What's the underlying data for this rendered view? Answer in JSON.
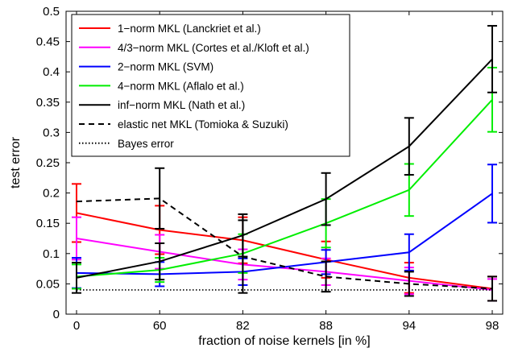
{
  "chart_data": {
    "type": "line",
    "xlabel": "fraction of noise kernels [in %]",
    "ylabel": "test error",
    "categories": [
      "0",
      "60",
      "82",
      "88",
      "94",
      "98"
    ],
    "ylim": [
      0,
      0.5
    ],
    "yticks": [
      0,
      0.05,
      0.1,
      0.15,
      0.2,
      0.25,
      0.3,
      0.35,
      0.4,
      0.45,
      0.5
    ],
    "ytick_labels": [
      "0",
      "0.05",
      "0.1",
      "0.15",
      "0.2",
      "0.25",
      "0.3",
      "0.35",
      "0.4",
      "0.45",
      "0.5"
    ],
    "grid": false,
    "legend_position": "top-left",
    "series": [
      {
        "name": "1−norm MKL (Lanckriet et al.)",
        "color": "#ff0000",
        "dash": "solid",
        "values": [
          0.167,
          0.139,
          0.122,
          0.09,
          0.06,
          0.042
        ],
        "errors": [
          0.048,
          0.04,
          0.038,
          0.03,
          0.025,
          0.02
        ]
      },
      {
        "name": "4/3−norm MKL (Cortes et al./Kloft et al.)",
        "color": "#ff00ff",
        "dash": "solid",
        "values": [
          0.125,
          0.103,
          0.082,
          0.07,
          0.055,
          0.04
        ],
        "errors": [
          0.035,
          0.028,
          0.025,
          0.022,
          0.022,
          0.018
        ]
      },
      {
        "name": "2−norm MKL (SVM)",
        "color": "#0000ff",
        "dash": "solid",
        "values": [
          0.068,
          0.066,
          0.07,
          0.086,
          0.102,
          0.199
        ],
        "errors": [
          0.025,
          0.02,
          0.022,
          0.02,
          0.03,
          0.048
        ]
      },
      {
        "name": "4−norm MKL (Aflalo et al.)",
        "color": "#00ee00",
        "dash": "solid",
        "values": [
          0.062,
          0.073,
          0.1,
          0.15,
          0.205,
          0.354
        ],
        "errors": [
          0.02,
          0.02,
          0.032,
          0.04,
          0.043,
          0.053
        ]
      },
      {
        "name": "inf−norm MKL (Nath et al.)",
        "color": "#000000",
        "dash": "solid",
        "values": [
          0.06,
          0.087,
          0.13,
          0.19,
          0.277,
          0.421
        ],
        "errors": [
          0.025,
          0.03,
          0.035,
          0.043,
          0.047,
          0.055
        ]
      },
      {
        "name": "elastic net MKL (Tomioka & Suzuki)",
        "color": "#000000",
        "dash": "dashed",
        "values": [
          0.186,
          0.191,
          0.095,
          0.062,
          0.05,
          0.042
        ],
        "errors": [
          0.0,
          0.05,
          0.06,
          0.025,
          0.02,
          0.02
        ]
      },
      {
        "name": "Bayes error",
        "color": "#000000",
        "dash": "dotted",
        "values": [
          0.04,
          0.04,
          0.04,
          0.04,
          0.04,
          0.04
        ],
        "errors": [
          0,
          0,
          0,
          0,
          0,
          0
        ]
      }
    ]
  }
}
